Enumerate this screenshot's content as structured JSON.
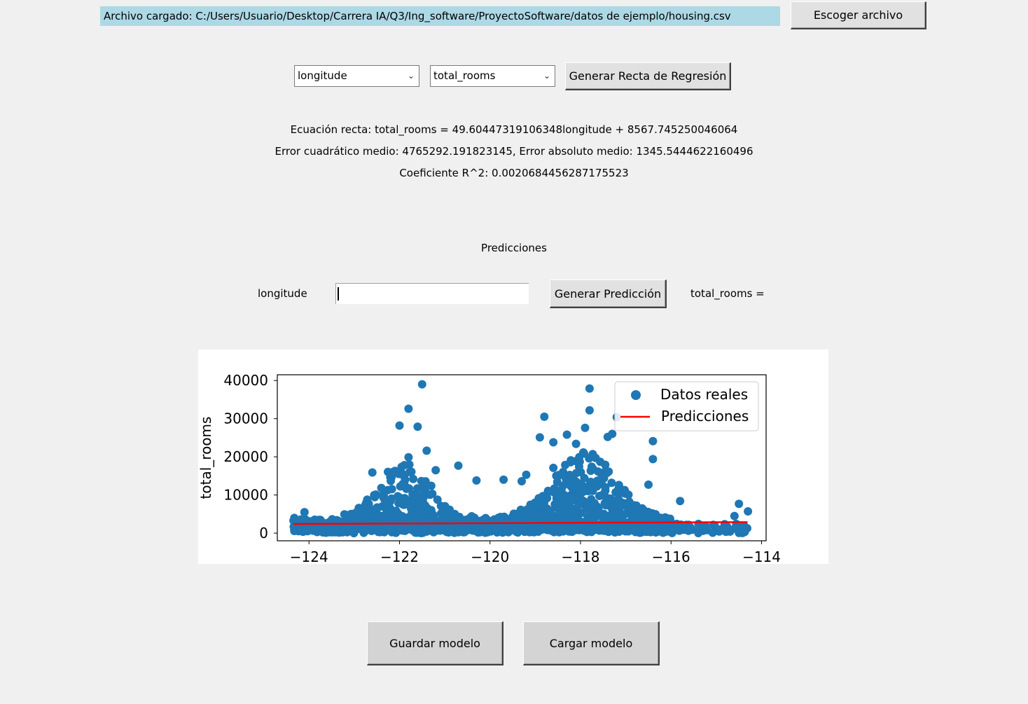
{
  "file": {
    "loaded_label": "Archivo cargado: C:/Users/Usuario/Desktop/Carrera IA/Q3/Ing_software/ProyectoSoftware/datos de ejemplo/housing.csv",
    "choose_button": "Escoger archivo"
  },
  "selectors": {
    "x_column": "longitude",
    "y_column": "total_rooms",
    "generate_button": "Generar Recta de Regresión"
  },
  "results": {
    "equation": "Ecuación recta: total_rooms = 49.60447319106348longitude + 8567.745250046064",
    "errors": "Error cuadrático medio: 4765292.191823145, Error absoluto medio: 1345.5444622160496",
    "r2": "Coeficiente R^2: 0.0020684456287175523"
  },
  "prediction": {
    "section_title": "Predicciones",
    "input_label": "longitude",
    "input_value": "",
    "button": "Generar Predicción",
    "output_label": "total_rooms ="
  },
  "model_buttons": {
    "save": "Guardar modelo",
    "load": "Cargar modelo"
  },
  "chart_data": {
    "type": "scatter",
    "xlabel": "",
    "ylabel": "total_rooms",
    "xlim": [
      -124.7,
      -113.9
    ],
    "ylim": [
      -2000,
      41500
    ],
    "xticks": [
      -124,
      -122,
      -120,
      -118,
      -116,
      -114
    ],
    "yticks": [
      0,
      10000,
      20000,
      30000,
      40000
    ],
    "legend_position": "upper-right",
    "series": [
      {
        "name": "Datos reales",
        "color": "#1f77b4",
        "outliers": [
          [
            -121.5,
            39000
          ],
          [
            -117.8,
            37900
          ],
          [
            -121.8,
            32600
          ],
          [
            -117.8,
            32200
          ],
          [
            -117.2,
            30400
          ],
          [
            -122.0,
            28200
          ],
          [
            -121.6,
            27900
          ],
          [
            -117.9,
            27600
          ],
          [
            -118.8,
            30500
          ],
          [
            -117.4,
            25200
          ],
          [
            -118.6,
            23800
          ],
          [
            -118.9,
            25100
          ],
          [
            -118.3,
            25800
          ],
          [
            -117.3,
            26000
          ],
          [
            -116.4,
            24100
          ],
          [
            -121.4,
            21600
          ],
          [
            -118.1,
            23400
          ],
          [
            -116.4,
            19400
          ],
          [
            -121.8,
            19900
          ],
          [
            -120.7,
            17700
          ],
          [
            -119.7,
            14000
          ],
          [
            -119.2,
            15300
          ],
          [
            -119.3,
            13600
          ],
          [
            -120.3,
            13800
          ],
          [
            -116.5,
            12700
          ],
          [
            -115.8,
            8400
          ],
          [
            -114.5,
            7700
          ],
          [
            -114.3,
            5700
          ],
          [
            -114.6,
            4500
          ],
          [
            -114.9,
            1000
          ],
          [
            -114.5,
            900
          ],
          [
            -124.3,
            1800
          ],
          [
            -124.1,
            5500
          ],
          [
            -122.6,
            15900
          ],
          [
            -121.2,
            16500
          ],
          [
            -118.6,
            17100
          ]
        ]
      },
      {
        "name": "Predicciones",
        "color": "#ff0000",
        "line": [
          [
            -124.35,
            2399
          ],
          [
            -114.31,
            2897
          ]
        ]
      }
    ]
  }
}
